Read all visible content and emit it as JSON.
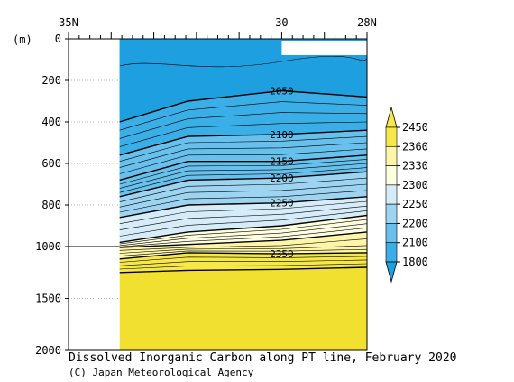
{
  "title": "Dissolved Inorganic Carbon along PT line, February 2020",
  "credit": "(C) Japan Meteorological Agency",
  "chart_data": {
    "type": "heatmap",
    "ylabel_unit": "(m)",
    "x_ticks": [
      {
        "value": 35,
        "label": "35N"
      },
      {
        "value": 30,
        "label": "30"
      },
      {
        "value": 28,
        "label": "28N"
      }
    ],
    "x_range": [
      35,
      28
    ],
    "y_ticks": [
      0,
      200,
      400,
      600,
      800,
      1000,
      1500,
      2000
    ],
    "y_range": [
      0,
      2000
    ],
    "data_lon_range": [
      33.8,
      28
    ],
    "colorbar": {
      "levels": [
        1800,
        2100,
        2200,
        2250,
        2300,
        2330,
        2360,
        2450
      ],
      "colors": [
        "#1e9fe0",
        "#3aaee6",
        "#68c0ec",
        "#9dd4f2",
        "#d6ecf8",
        "#fffde0",
        "#fdf5a8",
        "#f7e84a",
        "#f2e030"
      ]
    },
    "labeled_contours": [
      {
        "value": 2050,
        "label": "2050",
        "depth_at_30N": 250
      },
      {
        "value": 2100,
        "label": "2100",
        "depth_at_30N": 460
      },
      {
        "value": 2150,
        "label": "2150",
        "depth_at_30N": 590
      },
      {
        "value": 2200,
        "label": "2200",
        "depth_at_30N": 670
      },
      {
        "value": 2250,
        "label": "2250",
        "depth_at_30N": 790
      },
      {
        "value": 2350,
        "label": "2350",
        "depth_at_30N": 1070
      }
    ]
  }
}
